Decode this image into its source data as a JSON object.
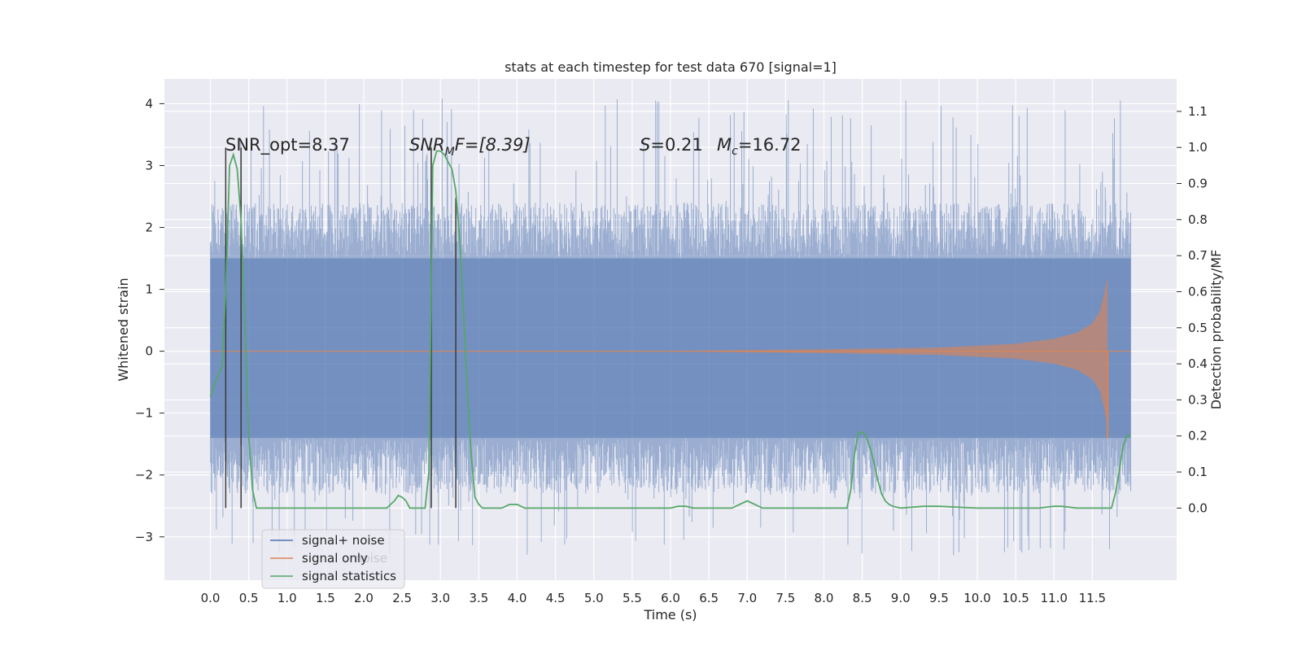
{
  "chart_data": {
    "type": "line",
    "title": "stats at each timestep for test data 670 [signal=1]",
    "xlabel": "Time (s)",
    "ylabel": "Whitened strain",
    "ylabel_right": "Detection probability/MF",
    "xlim": [
      -0.6,
      12.6
    ],
    "ylim": [
      -3.7,
      4.4
    ],
    "ylim_right": [
      -0.2,
      1.19
    ],
    "x_ticks": [
      "0.0",
      "0.5",
      "1.0",
      "1.5",
      "2.0",
      "2.5",
      "3.0",
      "3.5",
      "4.0",
      "4.5",
      "5.0",
      "5.5",
      "6.0",
      "6.5",
      "7.0",
      "7.5",
      "8.0",
      "8.5",
      "9.0",
      "9.5",
      "10.0",
      "10.5",
      "11.0",
      "11.5"
    ],
    "y_ticks": [
      "−3",
      "−2",
      "−1",
      "0",
      "1",
      "2",
      "3",
      "4"
    ],
    "y_ticks_right": [
      "0.0",
      "0.1",
      "0.2",
      "0.3",
      "0.4",
      "0.5",
      "0.6",
      "0.7",
      "0.8",
      "0.9",
      "1.0",
      "1.1"
    ],
    "grid": true,
    "background": "#eaeaf2",
    "legend": {
      "position": "lower-left",
      "entries": [
        {
          "label": "signal+ noise",
          "color": "#4c72b0"
        },
        {
          "label": "signal only",
          "color": "#dd8452"
        },
        {
          "label": "signal statistics",
          "color": "#55a868"
        }
      ]
    },
    "legend_ghost_text": "noise",
    "annotations": {
      "snr_opt": "SNR_opt=8.37",
      "snr_mf_base": "SNR",
      "snr_mf_sub": "M",
      "snr_mf_rest": "F=[8.39]",
      "s_sym": "S",
      "s_val": "=0.21",
      "mc_sym": "M",
      "mc_sub": "c",
      "mc_val": "=16.72"
    },
    "series": [
      {
        "name": "signal+ noise",
        "color": "#4c72b0",
        "x_range": [
          0.0,
          12.0
        ],
        "band": [
          -1.4,
          1.5
        ],
        "extreme_range": [
          -3.3,
          4.1
        ]
      },
      {
        "name": "signal only",
        "color": "#dd8452",
        "x_range": [
          0.0,
          11.7
        ],
        "envelope": {
          "x": [
            0.0,
            6.0,
            8.0,
            9.5,
            10.5,
            11.0,
            11.3,
            11.5,
            11.6,
            11.65,
            11.7
          ],
          "amp": [
            0.0,
            0.005,
            0.03,
            0.06,
            0.12,
            0.2,
            0.3,
            0.45,
            0.65,
            0.9,
            1.2
          ]
        },
        "chirp_end": 11.7,
        "min_value": -1.4
      },
      {
        "name": "signal statistics",
        "color": "#55a868",
        "axis": "right",
        "x": [
          0.0,
          0.1,
          0.15,
          0.2,
          0.25,
          0.3,
          0.35,
          0.4,
          0.45,
          0.5,
          0.55,
          0.6,
          0.7,
          1.0,
          1.5,
          2.0,
          2.3,
          2.35,
          2.4,
          2.45,
          2.5,
          2.55,
          2.6,
          2.65,
          2.7,
          2.8,
          2.85,
          2.9,
          2.95,
          3.0,
          3.05,
          3.1,
          3.15,
          3.2,
          3.25,
          3.3,
          3.35,
          3.4,
          3.45,
          3.5,
          3.55,
          3.6,
          3.65,
          3.7,
          3.8,
          3.9,
          4.0,
          4.1,
          4.3,
          5.0,
          6.0,
          6.1,
          6.2,
          6.3,
          6.8,
          6.9,
          7.0,
          7.1,
          7.2,
          8.0,
          8.3,
          8.35,
          8.4,
          8.45,
          8.5,
          8.55,
          8.6,
          8.65,
          8.7,
          8.75,
          8.8,
          8.85,
          8.9,
          9.0,
          9.3,
          9.5,
          10.0,
          10.8,
          11.0,
          11.1,
          11.3,
          11.6,
          11.75,
          11.8,
          11.85,
          11.9,
          11.95,
          12.0
        ],
        "y": [
          0.31,
          0.37,
          0.39,
          0.6,
          0.95,
          0.98,
          0.94,
          0.8,
          0.5,
          0.2,
          0.05,
          0.0,
          0.0,
          0.0,
          0.0,
          0.0,
          0.0,
          0.01,
          0.02,
          0.035,
          0.03,
          0.02,
          0.0,
          0.0,
          0.0,
          0.0,
          0.1,
          0.95,
          0.99,
          0.99,
          0.98,
          0.96,
          0.94,
          0.88,
          0.75,
          0.55,
          0.33,
          0.15,
          0.03,
          0.01,
          0.0,
          0.0,
          0.0,
          0.0,
          0.0,
          0.01,
          0.01,
          0.0,
          0.0,
          0.0,
          0.0,
          0.005,
          0.005,
          0.0,
          0.0,
          0.01,
          0.02,
          0.01,
          0.0,
          0.0,
          0.0,
          0.05,
          0.15,
          0.21,
          0.21,
          0.2,
          0.17,
          0.13,
          0.08,
          0.04,
          0.02,
          0.01,
          0.005,
          0.0,
          0.005,
          0.005,
          0.0,
          0.0,
          0.005,
          0.005,
          0.0,
          0.0,
          0.0,
          0.04,
          0.1,
          0.17,
          0.2,
          0.2
        ]
      }
    ],
    "vertical_markers": [
      {
        "x": 0.2,
        "y_bottom": 0.0,
        "y_top": 1.0
      },
      {
        "x": 0.4,
        "y_bottom": 0.0,
        "y_top": 1.0
      },
      {
        "x": 2.88,
        "y_bottom": 0.0,
        "y_top": 1.0
      },
      {
        "x": 3.2,
        "y_bottom": 0.0,
        "y_top": 0.86
      }
    ],
    "marker_color": "#3a3a3a"
  }
}
